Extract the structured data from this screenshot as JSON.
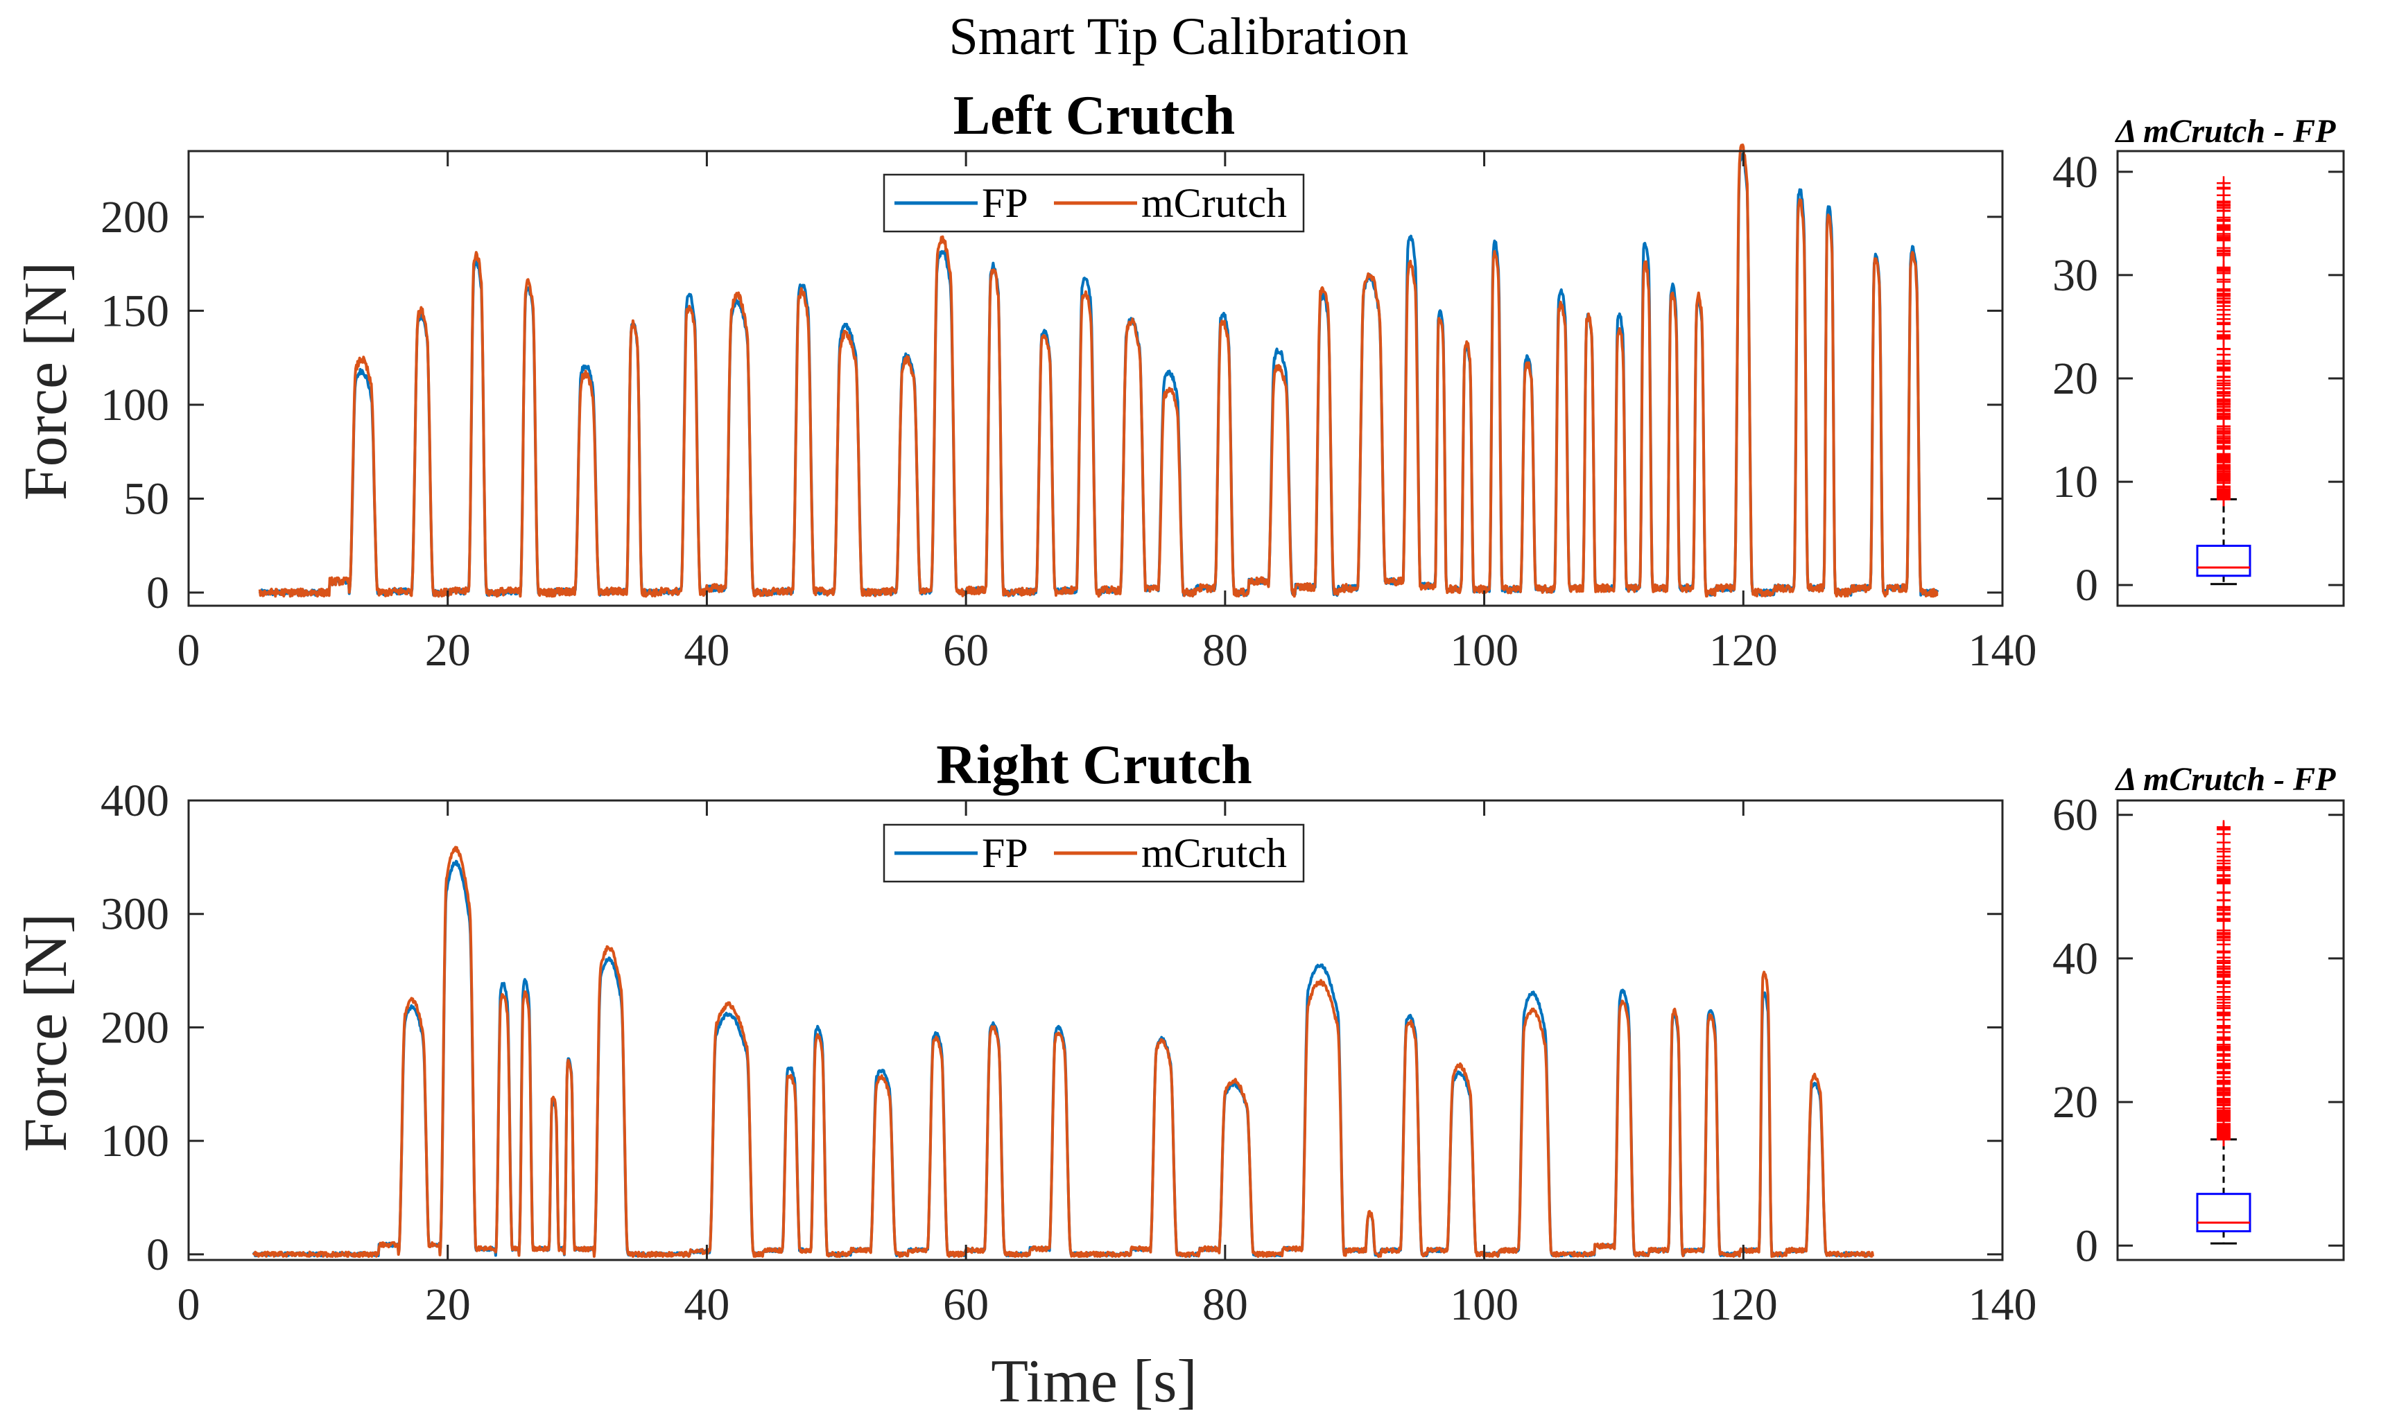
{
  "figure_title": "Smart Tip Calibration",
  "chart_data": [
    {
      "type": "line",
      "title": "Left Crutch",
      "xlabel": "",
      "ylabel": "Force [N]",
      "xlim": [
        0,
        140
      ],
      "ylim": [
        -7,
        235
      ],
      "xticks": [
        0,
        20,
        40,
        60,
        80,
        100,
        120,
        140
      ],
      "yticks": [
        0,
        50,
        100,
        150,
        200
      ],
      "xtick_labels": [
        "0",
        "20",
        "40",
        "60",
        "80",
        "100",
        "120",
        "140"
      ],
      "ytick_labels": [
        "0",
        "50",
        "100",
        "150",
        "200"
      ],
      "x_start": 5.5,
      "x_end": 135,
      "legend": [
        "FP",
        "mCrutch"
      ],
      "legend_position": "top-center",
      "series": [
        {
          "name": "FP",
          "color": "#0072BD"
        },
        {
          "name": "mCrutch",
          "color": "#D95319"
        }
      ],
      "peaks": [
        {
          "start": 12.4,
          "end": 14.6,
          "fp": 118,
          "mc": 124,
          "base_before": 10
        },
        {
          "start": 17.2,
          "end": 18.9,
          "fp": 147,
          "mc": 150,
          "base_before": 1
        },
        {
          "start": 21.6,
          "end": 23.0,
          "fp": 176,
          "mc": 180,
          "base_before": 1
        },
        {
          "start": 25.6,
          "end": 27.0,
          "fp": 162,
          "mc": 165,
          "base_before": 1
        },
        {
          "start": 29.8,
          "end": 31.7,
          "fp": 121,
          "mc": 116,
          "base_before": 1
        },
        {
          "start": 33.8,
          "end": 35.0,
          "fp": 143,
          "mc": 143,
          "base_before": 1
        },
        {
          "start": 38.0,
          "end": 39.5,
          "fp": 158,
          "mc": 152,
          "base_before": 1
        },
        {
          "start": 41.4,
          "end": 43.6,
          "fp": 155,
          "mc": 158,
          "base_before": 4
        },
        {
          "start": 46.6,
          "end": 48.3,
          "fp": 164,
          "mc": 160,
          "base_before": 1
        },
        {
          "start": 49.8,
          "end": 52.0,
          "fp": 142,
          "mc": 138,
          "base_before": 1
        },
        {
          "start": 54.6,
          "end": 56.5,
          "fp": 126,
          "mc": 124,
          "base_before": 1
        },
        {
          "start": 57.3,
          "end": 59.3,
          "fp": 182,
          "mc": 188,
          "base_before": 1
        },
        {
          "start": 61.5,
          "end": 62.9,
          "fp": 174,
          "mc": 172,
          "base_before": 2
        },
        {
          "start": 65.4,
          "end": 66.9,
          "fp": 139,
          "mc": 137,
          "base_before": 1
        },
        {
          "start": 68.5,
          "end": 70.1,
          "fp": 168,
          "mc": 160,
          "base_before": 2
        },
        {
          "start": 71.9,
          "end": 73.9,
          "fp": 145,
          "mc": 144,
          "base_before": 2
        },
        {
          "start": 74.8,
          "end": 76.8,
          "fp": 117,
          "mc": 108,
          "base_before": 4
        },
        {
          "start": 79.2,
          "end": 80.7,
          "fp": 148,
          "mc": 144,
          "base_before": 4
        },
        {
          "start": 83.3,
          "end": 85.2,
          "fp": 129,
          "mc": 120,
          "base_before": 10
        },
        {
          "start": 86.9,
          "end": 88.4,
          "fp": 158,
          "mc": 162,
          "base_before": 5
        },
        {
          "start": 90.2,
          "end": 92.4,
          "fp": 168,
          "mc": 170,
          "base_before": 4
        },
        {
          "start": 93.7,
          "end": 95.1,
          "fp": 190,
          "mc": 175,
          "base_before": 10
        },
        {
          "start": 96.2,
          "end": 97.1,
          "fp": 150,
          "mc": 146,
          "base_before": 6
        },
        {
          "start": 98.2,
          "end": 99.2,
          "fp": 131,
          "mc": 133,
          "base_before": 3
        },
        {
          "start": 100.4,
          "end": 101.4,
          "fp": 186,
          "mc": 180,
          "base_before": 3
        },
        {
          "start": 102.8,
          "end": 104.0,
          "fp": 125,
          "mc": 122,
          "base_before": 3
        },
        {
          "start": 105.4,
          "end": 106.6,
          "fp": 161,
          "mc": 153,
          "base_before": 3
        },
        {
          "start": 107.6,
          "end": 108.6,
          "fp": 147,
          "mc": 147,
          "base_before": 4
        },
        {
          "start": 110.0,
          "end": 111.0,
          "fp": 148,
          "mc": 140,
          "base_before": 4
        },
        {
          "start": 112.0,
          "end": 113.0,
          "fp": 186,
          "mc": 175,
          "base_before": 4
        },
        {
          "start": 114.1,
          "end": 115.1,
          "fp": 163,
          "mc": 158,
          "base_before": 4
        },
        {
          "start": 116.1,
          "end": 117.1,
          "fp": 155,
          "mc": 158,
          "base_before": 4
        },
        {
          "start": 119.3,
          "end": 120.7,
          "fp": 233,
          "mc": 237,
          "base_before": 4
        },
        {
          "start": 123.9,
          "end": 125.0,
          "fp": 214,
          "mc": 208,
          "base_before": 4
        },
        {
          "start": 126.2,
          "end": 127.1,
          "fp": 205,
          "mc": 200,
          "base_before": 4
        },
        {
          "start": 129.8,
          "end": 130.8,
          "fp": 180,
          "mc": 178,
          "base_before": 4
        },
        {
          "start": 132.6,
          "end": 133.7,
          "fp": 183,
          "mc": 180,
          "base_before": 4
        }
      ]
    },
    {
      "type": "line",
      "title": "Right Crutch",
      "xlabel": "Time [s]",
      "ylabel": "Force [N]",
      "xlim": [
        0,
        140
      ],
      "ylim": [
        -5,
        400
      ],
      "xticks": [
        0,
        20,
        40,
        60,
        80,
        100,
        120,
        140
      ],
      "yticks": [
        0,
        100,
        200,
        300,
        400
      ],
      "xtick_labels": [
        "0",
        "20",
        "40",
        "60",
        "80",
        "100",
        "120",
        "140"
      ],
      "ytick_labels": [
        "0",
        "100",
        "200",
        "300",
        "400"
      ],
      "x_start": 5,
      "x_end": 130,
      "legend": [
        "FP",
        "mCrutch"
      ],
      "legend_position": "top-center",
      "series": [
        {
          "name": "FP",
          "color": "#0072BD"
        },
        {
          "name": "mCrutch",
          "color": "#D95319"
        }
      ],
      "peaks": [
        {
          "start": 16.2,
          "end": 18.6,
          "fp": 218,
          "mc": 224,
          "base_before": 14
        },
        {
          "start": 19.4,
          "end": 22.2,
          "fp": 345,
          "mc": 357,
          "base_before": 14
        },
        {
          "start": 23.7,
          "end": 25.0,
          "fp": 239,
          "mc": 228,
          "base_before": 8
        },
        {
          "start": 25.5,
          "end": 26.6,
          "fp": 241,
          "mc": 230,
          "base_before": 8
        },
        {
          "start": 27.8,
          "end": 28.6,
          "fp": 135,
          "mc": 138,
          "base_before": 8
        },
        {
          "start": 29.0,
          "end": 29.8,
          "fp": 172,
          "mc": 170,
          "base_before": 8
        },
        {
          "start": 31.3,
          "end": 33.9,
          "fp": 260,
          "mc": 270,
          "base_before": 8
        },
        {
          "start": 40.2,
          "end": 43.6,
          "fp": 212,
          "mc": 220,
          "base_before": 4
        },
        {
          "start": 45.8,
          "end": 47.2,
          "fp": 165,
          "mc": 158,
          "base_before": 6
        },
        {
          "start": 48.0,
          "end": 49.3,
          "fp": 200,
          "mc": 192,
          "base_before": 6
        },
        {
          "start": 52.6,
          "end": 54.6,
          "fp": 162,
          "mc": 156,
          "base_before": 6
        },
        {
          "start": 57.0,
          "end": 58.6,
          "fp": 195,
          "mc": 190,
          "base_before": 6
        },
        {
          "start": 61.4,
          "end": 63.0,
          "fp": 203,
          "mc": 200,
          "base_before": 6
        },
        {
          "start": 66.4,
          "end": 68.1,
          "fp": 200,
          "mc": 195,
          "base_before": 8
        },
        {
          "start": 74.2,
          "end": 76.3,
          "fp": 190,
          "mc": 188,
          "base_before": 8
        },
        {
          "start": 79.5,
          "end": 82.2,
          "fp": 150,
          "mc": 153,
          "base_before": 8
        },
        {
          "start": 85.9,
          "end": 89.2,
          "fp": 255,
          "mc": 240,
          "base_before": 8
        },
        {
          "start": 90.8,
          "end": 91.6,
          "fp": 35,
          "mc": 36,
          "base_before": 6
        },
        {
          "start": 93.5,
          "end": 95.2,
          "fp": 210,
          "mc": 205,
          "base_before": 6
        },
        {
          "start": 97.1,
          "end": 99.4,
          "fp": 160,
          "mc": 166,
          "base_before": 6
        },
        {
          "start": 102.6,
          "end": 105.2,
          "fp": 230,
          "mc": 215,
          "base_before": 6
        },
        {
          "start": 110.0,
          "end": 111.6,
          "fp": 232,
          "mc": 222,
          "base_before": 12
        },
        {
          "start": 114.2,
          "end": 115.3,
          "fp": 210,
          "mc": 215,
          "base_before": 6
        },
        {
          "start": 116.9,
          "end": 118.2,
          "fp": 215,
          "mc": 210,
          "base_before": 6
        },
        {
          "start": 121.2,
          "end": 122.2,
          "fp": 230,
          "mc": 248,
          "base_before": 6
        },
        {
          "start": 124.8,
          "end": 126.4,
          "fp": 150,
          "mc": 157,
          "base_before": 6
        }
      ]
    },
    {
      "type": "box",
      "title": "Δ mCrutch - FP",
      "ylim": [
        -2,
        42
      ],
      "yticks": [
        0,
        10,
        20,
        30,
        40
      ],
      "ytick_labels": [
        "0",
        "10",
        "20",
        "30",
        "40"
      ],
      "box": {
        "min": 0.1,
        "q1": 0.9,
        "median": 1.7,
        "q3": 3.8,
        "whisker_high": 8.3
      },
      "outliers_from": 8.3,
      "outliers_to": 38.9,
      "box_color": "#0000FF",
      "median_color": "#FF0000",
      "outlier_color": "#FF0000"
    },
    {
      "type": "box",
      "title": "Δ mCrutch - FP",
      "ylim": [
        -2,
        62
      ],
      "yticks": [
        0,
        20,
        40,
        60
      ],
      "ytick_labels": [
        "0",
        "20",
        "40",
        "60"
      ],
      "box": {
        "min": 0.3,
        "q1": 2.0,
        "median": 3.2,
        "q3": 7.2,
        "whisker_high": 14.8
      },
      "outliers_from": 14.8,
      "outliers_to": 58.3,
      "box_color": "#0000FF",
      "median_color": "#FF0000",
      "outlier_color": "#FF0000"
    }
  ]
}
